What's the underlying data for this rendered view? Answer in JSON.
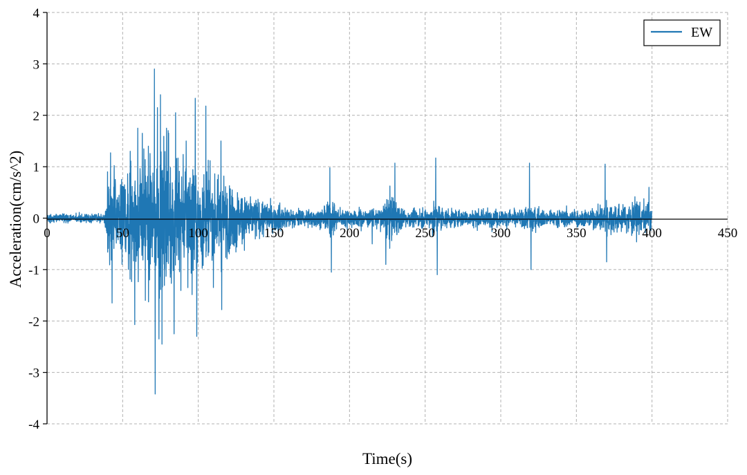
{
  "chart_data": {
    "type": "line",
    "xlabel": "Time(s)",
    "ylabel": "Acceleration(cm/s^2)",
    "xlim": [
      0,
      450
    ],
    "ylim": [
      -4,
      4
    ],
    "x_ticks": [
      "0",
      "50",
      "100",
      "150",
      "200",
      "250",
      "300",
      "350",
      "400",
      "450"
    ],
    "y_ticks": [
      "4",
      "3",
      "2",
      "1",
      "0",
      "-1",
      "-2",
      "-3",
      "-4"
    ],
    "grid": true,
    "legend_position": "top-right",
    "series": [
      {
        "name": "EW",
        "color": "#1f77b4",
        "duration": 400,
        "peak_values": [
          {
            "x": 40,
            "y": 0.9
          },
          {
            "x": 42,
            "y": 1.27
          },
          {
            "x": 43,
            "y": -1.65
          },
          {
            "x": 55,
            "y": 1.3
          },
          {
            "x": 58,
            "y": -2.07
          },
          {
            "x": 60,
            "y": 1.75
          },
          {
            "x": 63,
            "y": 1.65
          },
          {
            "x": 65,
            "y": -1.6
          },
          {
            "x": 67,
            "y": 1.4
          },
          {
            "x": 71,
            "y": 2.9
          },
          {
            "x": 71.5,
            "y": -3.42
          },
          {
            "x": 73,
            "y": 2.15
          },
          {
            "x": 74,
            "y": -2.35
          },
          {
            "x": 75,
            "y": 2.4
          },
          {
            "x": 76,
            "y": -2.45
          },
          {
            "x": 79,
            "y": 1.75
          },
          {
            "x": 84,
            "y": -2.25
          },
          {
            "x": 85,
            "y": 2.05
          },
          {
            "x": 92,
            "y": 1.5
          },
          {
            "x": 98,
            "y": 2.33
          },
          {
            "x": 99,
            "y": -2.3
          },
          {
            "x": 105,
            "y": 2.18
          },
          {
            "x": 110,
            "y": -1.35
          },
          {
            "x": 115,
            "y": 1.5
          },
          {
            "x": 115.5,
            "y": -1.78
          },
          {
            "x": 187,
            "y": 0.98
          },
          {
            "x": 188,
            "y": -1.05
          },
          {
            "x": 215,
            "y": -0.5
          },
          {
            "x": 224,
            "y": -0.9
          },
          {
            "x": 230,
            "y": 1.07
          },
          {
            "x": 257,
            "y": 1.17
          },
          {
            "x": 258,
            "y": -1.1
          },
          {
            "x": 319,
            "y": 1.07
          },
          {
            "x": 320,
            "y": -1.0
          },
          {
            "x": 369,
            "y": 1.05
          },
          {
            "x": 370,
            "y": -0.85
          },
          {
            "x": 398,
            "y": 0.6
          }
        ]
      }
    ]
  }
}
